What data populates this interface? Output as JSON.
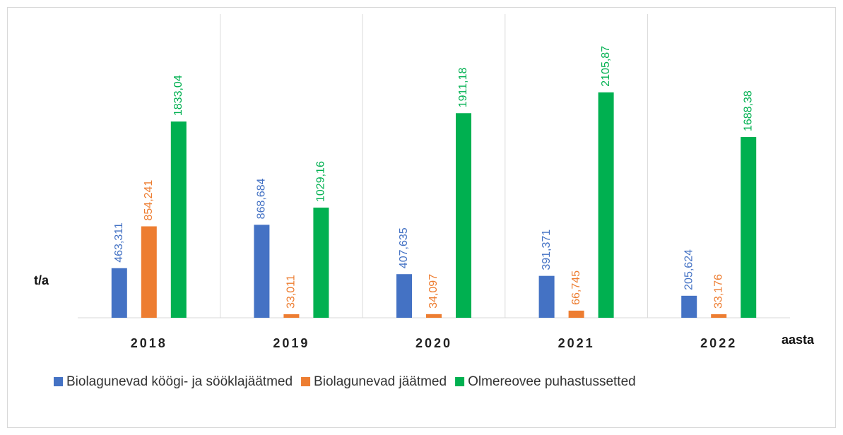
{
  "chart_data": {
    "type": "bar",
    "y_label": "t/a",
    "x_label": "aasta",
    "categories": [
      "2018",
      "2019",
      "2020",
      "2021",
      "2022"
    ],
    "ylim": [
      0,
      2500
    ],
    "series": [
      {
        "name": "Biolagunevad köögi- ja sööklajäätmed",
        "color": "#4472c4",
        "values": [
          463.311,
          868.684,
          407.635,
          391.371,
          205.624
        ],
        "value_labels": [
          "463,311",
          "868,684",
          "407,635",
          "391,371",
          "205,624"
        ]
      },
      {
        "name": "Biolagunevad jäätmed",
        "color": "#ed7d31",
        "values": [
          854.241,
          33.011,
          34.097,
          66.745,
          33.176
        ],
        "value_labels": [
          "854,241",
          "33,011",
          "34,097",
          "66,745",
          "33,176"
        ]
      },
      {
        "name": "Olmereovee puhastussetted",
        "color": "#00b050",
        "values": [
          1833.04,
          1029.16,
          1911.18,
          2105.87,
          1688.38
        ],
        "value_labels": [
          "1833,04",
          "1029,16",
          "1911,18",
          "2105,87",
          "1688,38"
        ]
      }
    ]
  }
}
